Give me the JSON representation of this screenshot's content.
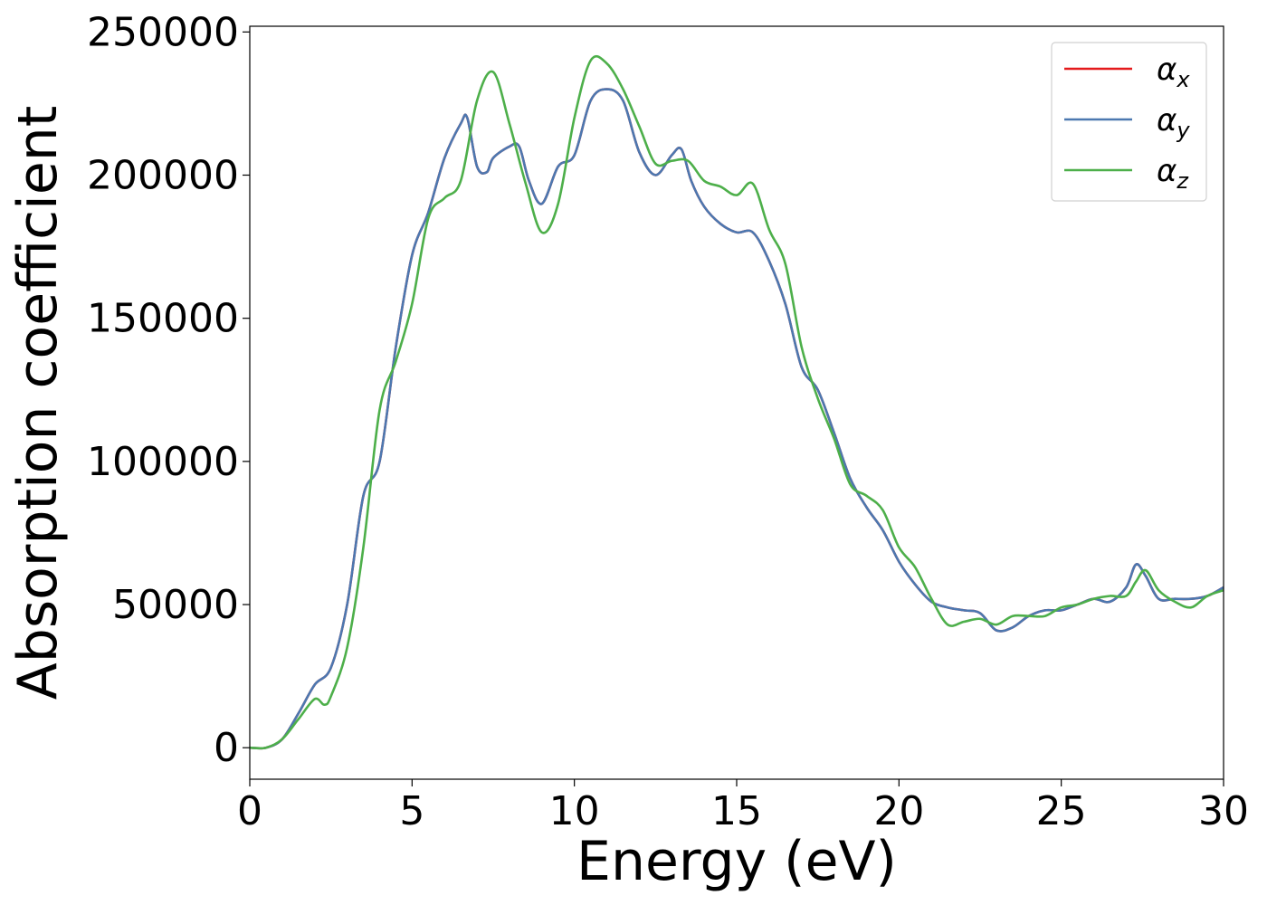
{
  "chart_data": {
    "type": "line",
    "title": "",
    "xlabel": "Energy (eV)",
    "ylabel": "Absorption coefficient",
    "xlim": [
      0,
      30
    ],
    "ylim": [
      -11000,
      252000
    ],
    "xticks": [
      0,
      5,
      10,
      15,
      20,
      25,
      30
    ],
    "yticks": [
      0,
      50000,
      100000,
      150000,
      200000,
      250000
    ],
    "xtick_labels": [
      "0",
      "5",
      "10",
      "15",
      "20",
      "25",
      "30"
    ],
    "ytick_labels": [
      "0",
      "50000",
      "100000",
      "150000",
      "200000",
      "250000"
    ],
    "grid": false,
    "legend_position": "top-right",
    "series": [
      {
        "name": "αx",
        "symbol": "α",
        "subscript": "x",
        "color": "#e41a1c",
        "x": [
          0,
          0.5,
          1.0,
          1.5,
          2.0,
          2.5,
          3.0,
          3.5,
          4.0,
          4.5,
          5.0,
          5.5,
          6.0,
          6.5,
          6.7,
          7.0,
          7.3,
          7.5,
          8.0,
          8.3,
          8.6,
          9.0,
          9.5,
          10.0,
          10.5,
          11.0,
          11.5,
          12.0,
          12.5,
          13.0,
          13.3,
          13.6,
          14.0,
          14.5,
          15.0,
          15.5,
          16.0,
          16.5,
          17.0,
          17.5,
          18.0,
          18.5,
          19.0,
          19.5,
          20.0,
          20.5,
          21.0,
          21.5,
          22.0,
          22.5,
          23.0,
          23.5,
          24.0,
          24.5,
          25.0,
          25.5,
          26.0,
          26.5,
          27.0,
          27.3,
          27.6,
          28.0,
          28.5,
          29.0,
          29.5,
          30.0
        ],
        "y": [
          0,
          0,
          3000,
          12000,
          22000,
          28000,
          50000,
          88000,
          100000,
          140000,
          172000,
          187000,
          206000,
          218000,
          220000,
          203000,
          201000,
          206000,
          210000,
          210000,
          198000,
          190000,
          203000,
          207000,
          226000,
          230000,
          226000,
          208000,
          200000,
          207000,
          209000,
          198000,
          189000,
          183000,
          180000,
          180000,
          170000,
          155000,
          133000,
          125000,
          110000,
          94000,
          84000,
          76000,
          65000,
          57000,
          51000,
          49000,
          48000,
          47000,
          41000,
          42000,
          46000,
          48000,
          48000,
          50000,
          52000,
          51000,
          56000,
          64000,
          60000,
          52000,
          52000,
          52000,
          53000,
          56000
        ]
      },
      {
        "name": "αy",
        "symbol": "α",
        "subscript": "y",
        "color": "#4c78b0",
        "x": [
          0,
          0.5,
          1.0,
          1.5,
          2.0,
          2.5,
          3.0,
          3.5,
          4.0,
          4.5,
          5.0,
          5.5,
          6.0,
          6.5,
          6.7,
          7.0,
          7.3,
          7.5,
          8.0,
          8.3,
          8.6,
          9.0,
          9.5,
          10.0,
          10.5,
          11.0,
          11.5,
          12.0,
          12.5,
          13.0,
          13.3,
          13.6,
          14.0,
          14.5,
          15.0,
          15.5,
          16.0,
          16.5,
          17.0,
          17.5,
          18.0,
          18.5,
          19.0,
          19.5,
          20.0,
          20.5,
          21.0,
          21.5,
          22.0,
          22.5,
          23.0,
          23.5,
          24.0,
          24.5,
          25.0,
          25.5,
          26.0,
          26.5,
          27.0,
          27.3,
          27.6,
          28.0,
          28.5,
          29.0,
          29.5,
          30.0
        ],
        "y": [
          0,
          0,
          3000,
          12000,
          22000,
          28000,
          50000,
          88000,
          100000,
          140000,
          172000,
          187000,
          206000,
          218000,
          220000,
          203000,
          201000,
          206000,
          210000,
          210000,
          198000,
          190000,
          203000,
          207000,
          226000,
          230000,
          226000,
          208000,
          200000,
          207000,
          209000,
          198000,
          189000,
          183000,
          180000,
          180000,
          170000,
          155000,
          133000,
          125000,
          110000,
          94000,
          84000,
          76000,
          65000,
          57000,
          51000,
          49000,
          48000,
          47000,
          41000,
          42000,
          46000,
          48000,
          48000,
          50000,
          52000,
          51000,
          56000,
          64000,
          60000,
          52000,
          52000,
          52000,
          53000,
          56000
        ]
      },
      {
        "name": "αz",
        "symbol": "α",
        "subscript": "z",
        "color": "#4daf4a",
        "x": [
          0,
          0.5,
          1.0,
          1.5,
          2.0,
          2.3,
          2.5,
          3.0,
          3.5,
          4.0,
          4.5,
          5.0,
          5.5,
          6.0,
          6.5,
          7.0,
          7.5,
          8.0,
          8.5,
          9.0,
          9.5,
          10.0,
          10.5,
          11.0,
          11.5,
          12.0,
          12.5,
          13.0,
          13.5,
          14.0,
          14.5,
          15.0,
          15.5,
          16.0,
          16.5,
          17.0,
          17.5,
          18.0,
          18.5,
          19.0,
          19.5,
          20.0,
          20.5,
          21.0,
          21.5,
          22.0,
          22.5,
          23.0,
          23.5,
          24.0,
          24.5,
          25.0,
          25.5,
          26.0,
          26.5,
          27.0,
          27.3,
          27.6,
          28.0,
          28.5,
          29.0,
          29.5,
          30.0
        ],
        "y": [
          0,
          0,
          3000,
          10000,
          17000,
          15000,
          18000,
          35000,
          70000,
          118000,
          135000,
          155000,
          185000,
          192000,
          198000,
          226000,
          236000,
          218000,
          197000,
          180000,
          190000,
          220000,
          240000,
          239000,
          230000,
          217000,
          204000,
          205000,
          205000,
          198000,
          196000,
          193000,
          197000,
          181000,
          169000,
          140000,
          122000,
          108000,
          92000,
          88000,
          83000,
          70000,
          63000,
          52000,
          43000,
          44000,
          45000,
          43000,
          46000,
          46000,
          46000,
          49000,
          50000,
          52000,
          53000,
          53000,
          58000,
          62000,
          55000,
          51000,
          49000,
          53000,
          55000
        ]
      }
    ]
  }
}
